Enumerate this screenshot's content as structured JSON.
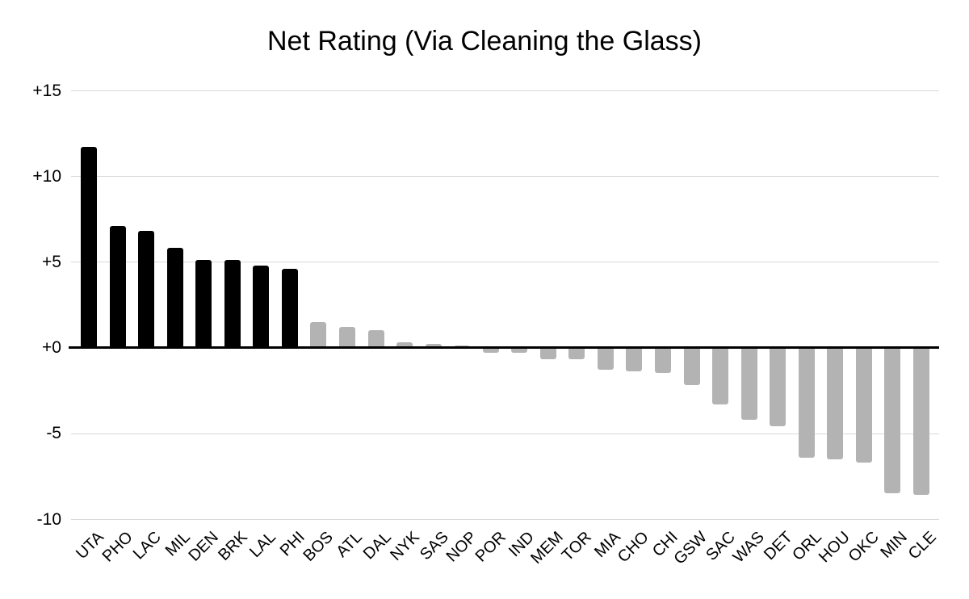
{
  "page": {
    "background_color": "#ffffff"
  },
  "chart_data": {
    "type": "bar",
    "title": "Net Rating (Via Cleaning the Glass)",
    "xlabel": "",
    "ylabel": "",
    "categories": [
      "UTA",
      "PHO",
      "LAC",
      "MIL",
      "DEN",
      "BRK",
      "LAL",
      "PHI",
      "BOS",
      "ATL",
      "DAL",
      "NYK",
      "SAS",
      "NOP",
      "POR",
      "IND",
      "MEM",
      "TOR",
      "MIA",
      "CHO",
      "CHI",
      "GSW",
      "SAC",
      "WAS",
      "DET",
      "ORL",
      "HOU",
      "OKC",
      "MIN",
      "CLE"
    ],
    "values": [
      11.7,
      7.1,
      6.8,
      5.8,
      5.1,
      5.1,
      4.8,
      4.6,
      1.5,
      1.2,
      1.0,
      0.3,
      0.2,
      0.1,
      -0.3,
      -0.3,
      -0.7,
      -0.7,
      -1.3,
      -1.4,
      -1.5,
      -2.2,
      -3.3,
      -4.2,
      -4.6,
      -6.4,
      -6.5,
      -6.7,
      -8.5,
      -8.6
    ],
    "highlighted_categories": [
      "UTA",
      "PHO",
      "LAC",
      "MIL",
      "DEN",
      "BRK",
      "LAL",
      "PHI"
    ],
    "highlight_color": "#000000",
    "default_bar_color": "#b3b3b3",
    "ylim": [
      -10,
      15
    ],
    "y_ticks": [
      {
        "value": 15,
        "label": "+15"
      },
      {
        "value": 10,
        "label": "+10"
      },
      {
        "value": 5,
        "label": "+5"
      },
      {
        "value": 0,
        "label": "+0"
      },
      {
        "value": -5,
        "label": "-5"
      },
      {
        "value": -10,
        "label": "-10"
      }
    ],
    "grid": true,
    "gridline_color": "#d9d9d9",
    "zero_line_color": "#000000",
    "legend_position": "none"
  }
}
